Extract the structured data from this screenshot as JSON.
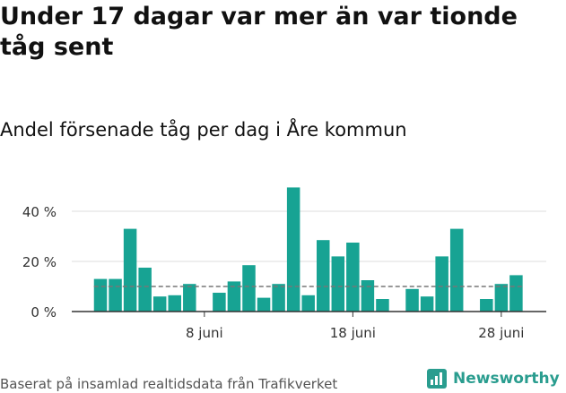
{
  "title": "Under 17 dagar var mer än var tionde tåg sent",
  "subtitle": "Andel försenade tåg per dag i Åre kommun",
  "source": "Baserat på insamlad realtidsdata från Trafikverket",
  "brand": "Newsworthy",
  "colors": {
    "bar": "#17a393",
    "reference": "#777777",
    "grid": "#dddddd",
    "brand": "#2a9d8f"
  },
  "chart_data": {
    "type": "bar",
    "x": [
      1,
      2,
      3,
      4,
      5,
      6,
      7,
      8,
      9,
      10,
      11,
      12,
      13,
      14,
      15,
      16,
      17,
      18,
      19,
      20,
      21,
      22,
      23,
      24,
      25,
      26,
      27,
      28,
      29,
      30
    ],
    "values": [
      13,
      13,
      33,
      17.5,
      6,
      6.5,
      11,
      null,
      7.5,
      12,
      18.5,
      5.5,
      11,
      49.5,
      6.5,
      28.5,
      22,
      27.5,
      12.5,
      5,
      null,
      9,
      6,
      22,
      33,
      null,
      5,
      11,
      14.5,
      null
    ],
    "xticks": [
      {
        "x": 8,
        "label": "8 juni"
      },
      {
        "x": 18,
        "label": "18 juni"
      },
      {
        "x": 28,
        "label": "28 juni"
      }
    ],
    "yticks": [
      {
        "value": 0,
        "label": "0 %"
      },
      {
        "value": 20,
        "label": "20 %"
      },
      {
        "value": 40,
        "label": "40 %"
      }
    ],
    "reference_line": 10,
    "ylim": [
      0,
      50
    ],
    "grid": true
  }
}
